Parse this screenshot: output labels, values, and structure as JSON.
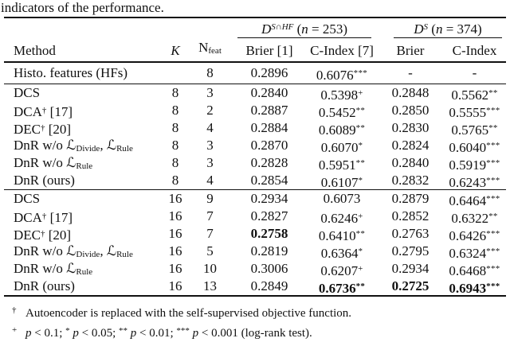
{
  "caption": "indicators of the performance.",
  "text_color": "#111111",
  "background_color": "#ffffff",
  "table": {
    "group_headers": [
      {
        "segs": [
          {
            "t": "D",
            "c": "calD"
          },
          {
            "t": "S∩HF",
            "c": "supit"
          },
          {
            "t": " ("
          },
          {
            "t": "n",
            "c": "it"
          },
          {
            "t": " = 253)"
          }
        ]
      },
      {
        "segs": [
          {
            "t": "D",
            "c": "calD"
          },
          {
            "t": "S",
            "c": "supit"
          },
          {
            "t": " ("
          },
          {
            "t": "n",
            "c": "it"
          },
          {
            "t": " = 374)"
          }
        ]
      }
    ],
    "columns": [
      {
        "key": "method",
        "segs": [
          {
            "t": "Method"
          }
        ]
      },
      {
        "key": "k",
        "segs": [
          {
            "t": "K",
            "c": "it"
          }
        ]
      },
      {
        "key": "nfeat",
        "segs": [
          {
            "t": "N"
          },
          {
            "t": "feat",
            "c": "sub"
          }
        ]
      },
      {
        "key": "brier1",
        "segs": [
          {
            "t": "Brier [1]"
          }
        ]
      },
      {
        "key": "cindex1",
        "segs": [
          {
            "t": "C-Index [7]"
          }
        ]
      },
      {
        "key": "brier2",
        "segs": [
          {
            "t": "Brier"
          }
        ]
      },
      {
        "key": "cindex2",
        "segs": [
          {
            "t": "C-Index"
          }
        ]
      }
    ],
    "blocks": [
      {
        "rows": [
          {
            "method": [
              {
                "t": "Histo. features (HFs)"
              }
            ],
            "k": "",
            "nfeat": "8",
            "cells": [
              {
                "v": "0.2896"
              },
              {
                "v": "0.6076",
                "s": "***"
              },
              {
                "v": "-"
              },
              {
                "v": "-"
              }
            ]
          }
        ]
      },
      {
        "rows": [
          {
            "method": [
              {
                "t": "DCS"
              }
            ],
            "k": "8",
            "nfeat": "3",
            "cells": [
              {
                "v": "0.2840"
              },
              {
                "v": "0.5398",
                "s": "+"
              },
              {
                "v": "0.2848"
              },
              {
                "v": "0.5562",
                "s": "**"
              }
            ]
          },
          {
            "method": [
              {
                "t": "DCA"
              },
              {
                "t": "†",
                "c": "sup"
              },
              {
                "t": " [17]"
              }
            ],
            "k": "8",
            "nfeat": "2",
            "cells": [
              {
                "v": "0.2887"
              },
              {
                "v": "0.5452",
                "s": "**"
              },
              {
                "v": "0.2850"
              },
              {
                "v": "0.5555",
                "s": "***"
              }
            ]
          },
          {
            "method": [
              {
                "t": "DEC"
              },
              {
                "t": "†",
                "c": "sup"
              },
              {
                "t": " [20]"
              }
            ],
            "k": "8",
            "nfeat": "4",
            "cells": [
              {
                "v": "0.2884"
              },
              {
                "v": "0.6089",
                "s": "**"
              },
              {
                "v": "0.2830"
              },
              {
                "v": "0.5765",
                "s": "**"
              }
            ]
          },
          {
            "method": [
              {
                "t": "DnR w/o "
              },
              {
                "t": "ℒ",
                "c": "calL"
              },
              {
                "t": "Divide",
                "c": "sub"
              },
              {
                "t": ", "
              },
              {
                "t": "ℒ",
                "c": "calL"
              },
              {
                "t": "Rule",
                "c": "sub"
              }
            ],
            "k": "8",
            "nfeat": "3",
            "cells": [
              {
                "v": "0.2870"
              },
              {
                "v": "0.6070",
                "s": "*"
              },
              {
                "v": "0.2824"
              },
              {
                "v": "0.6040",
                "s": "***"
              }
            ]
          },
          {
            "method": [
              {
                "t": "DnR w/o "
              },
              {
                "t": "ℒ",
                "c": "calL"
              },
              {
                "t": "Rule",
                "c": "sub"
              }
            ],
            "k": "8",
            "nfeat": "3",
            "cells": [
              {
                "v": "0.2828"
              },
              {
                "v": "0.5951",
                "s": "**"
              },
              {
                "v": "0.2840"
              },
              {
                "v": "0.5919",
                "s": "***"
              }
            ]
          },
          {
            "method": [
              {
                "t": "DnR (ours)"
              }
            ],
            "k": "8",
            "nfeat": "4",
            "cells": [
              {
                "v": "0.2854"
              },
              {
                "v": "0.6107",
                "s": "*"
              },
              {
                "v": "0.2832"
              },
              {
                "v": "0.6243",
                "s": "***"
              }
            ]
          }
        ]
      },
      {
        "rows": [
          {
            "method": [
              {
                "t": "DCS"
              }
            ],
            "k": "16",
            "nfeat": "9",
            "cells": [
              {
                "v": "0.2934"
              },
              {
                "v": "0.6073"
              },
              {
                "v": "0.2879"
              },
              {
                "v": "0.6464",
                "s": "***"
              }
            ]
          },
          {
            "method": [
              {
                "t": "DCA"
              },
              {
                "t": "†",
                "c": "sup"
              },
              {
                "t": " [17]"
              }
            ],
            "k": "16",
            "nfeat": "7",
            "cells": [
              {
                "v": "0.2827"
              },
              {
                "v": "0.6246",
                "s": "+"
              },
              {
                "v": "0.2852"
              },
              {
                "v": "0.6322",
                "s": "**"
              }
            ]
          },
          {
            "method": [
              {
                "t": "DEC"
              },
              {
                "t": "†",
                "c": "sup"
              },
              {
                "t": " [20]"
              }
            ],
            "k": "16",
            "nfeat": "7",
            "cells": [
              {
                "v": "0.2758",
                "b": 1
              },
              {
                "v": "0.6410",
                "s": "**"
              },
              {
                "v": "0.2763"
              },
              {
                "v": "0.6426",
                "s": "***"
              }
            ]
          },
          {
            "method": [
              {
                "t": "DnR w/o "
              },
              {
                "t": "ℒ",
                "c": "calL"
              },
              {
                "t": "Divide",
                "c": "sub"
              },
              {
                "t": ", "
              },
              {
                "t": "ℒ",
                "c": "calL"
              },
              {
                "t": "Rule",
                "c": "sub"
              }
            ],
            "k": "16",
            "nfeat": "5",
            "cells": [
              {
                "v": "0.2819"
              },
              {
                "v": "0.6364",
                "s": "*"
              },
              {
                "v": "0.2795"
              },
              {
                "v": "0.6324",
                "s": "***"
              }
            ]
          },
          {
            "method": [
              {
                "t": "DnR w/o "
              },
              {
                "t": "ℒ",
                "c": "calL"
              },
              {
                "t": "Rule",
                "c": "sub"
              }
            ],
            "k": "16",
            "nfeat": "10",
            "cells": [
              {
                "v": "0.3006"
              },
              {
                "v": "0.6207",
                "s": "+"
              },
              {
                "v": "0.2934"
              },
              {
                "v": "0.6468",
                "s": "***"
              }
            ]
          },
          {
            "method": [
              {
                "t": "DnR (ours)"
              }
            ],
            "k": "16",
            "nfeat": "13",
            "cells": [
              {
                "v": "0.2849"
              },
              {
                "v": "0.6736",
                "s": "**",
                "b": 1
              },
              {
                "v": "0.2725",
                "b": 1
              },
              {
                "v": "0.6943",
                "s": "***",
                "b": 1
              }
            ]
          }
        ]
      }
    ]
  },
  "footnotes": [
    {
      "segs": [
        {
          "t": "†",
          "c": "mk"
        },
        {
          "t": "Autoencoder is replaced with the self-supervised objective function."
        }
      ]
    },
    {
      "segs": [
        {
          "t": "+",
          "c": "mk"
        },
        {
          "t": "p",
          "c": "it"
        },
        {
          "t": " < 0.1; "
        },
        {
          "t": "*",
          "c": "sup"
        },
        {
          "t": " "
        },
        {
          "t": "p",
          "c": "it"
        },
        {
          "t": " < 0.05; "
        },
        {
          "t": "**",
          "c": "sup"
        },
        {
          "t": " "
        },
        {
          "t": "p",
          "c": "it"
        },
        {
          "t": " < 0.01; "
        },
        {
          "t": "***",
          "c": "sup"
        },
        {
          "t": " "
        },
        {
          "t": "p",
          "c": "it"
        },
        {
          "t": " < 0.001 (log-rank test)."
        }
      ]
    }
  ]
}
